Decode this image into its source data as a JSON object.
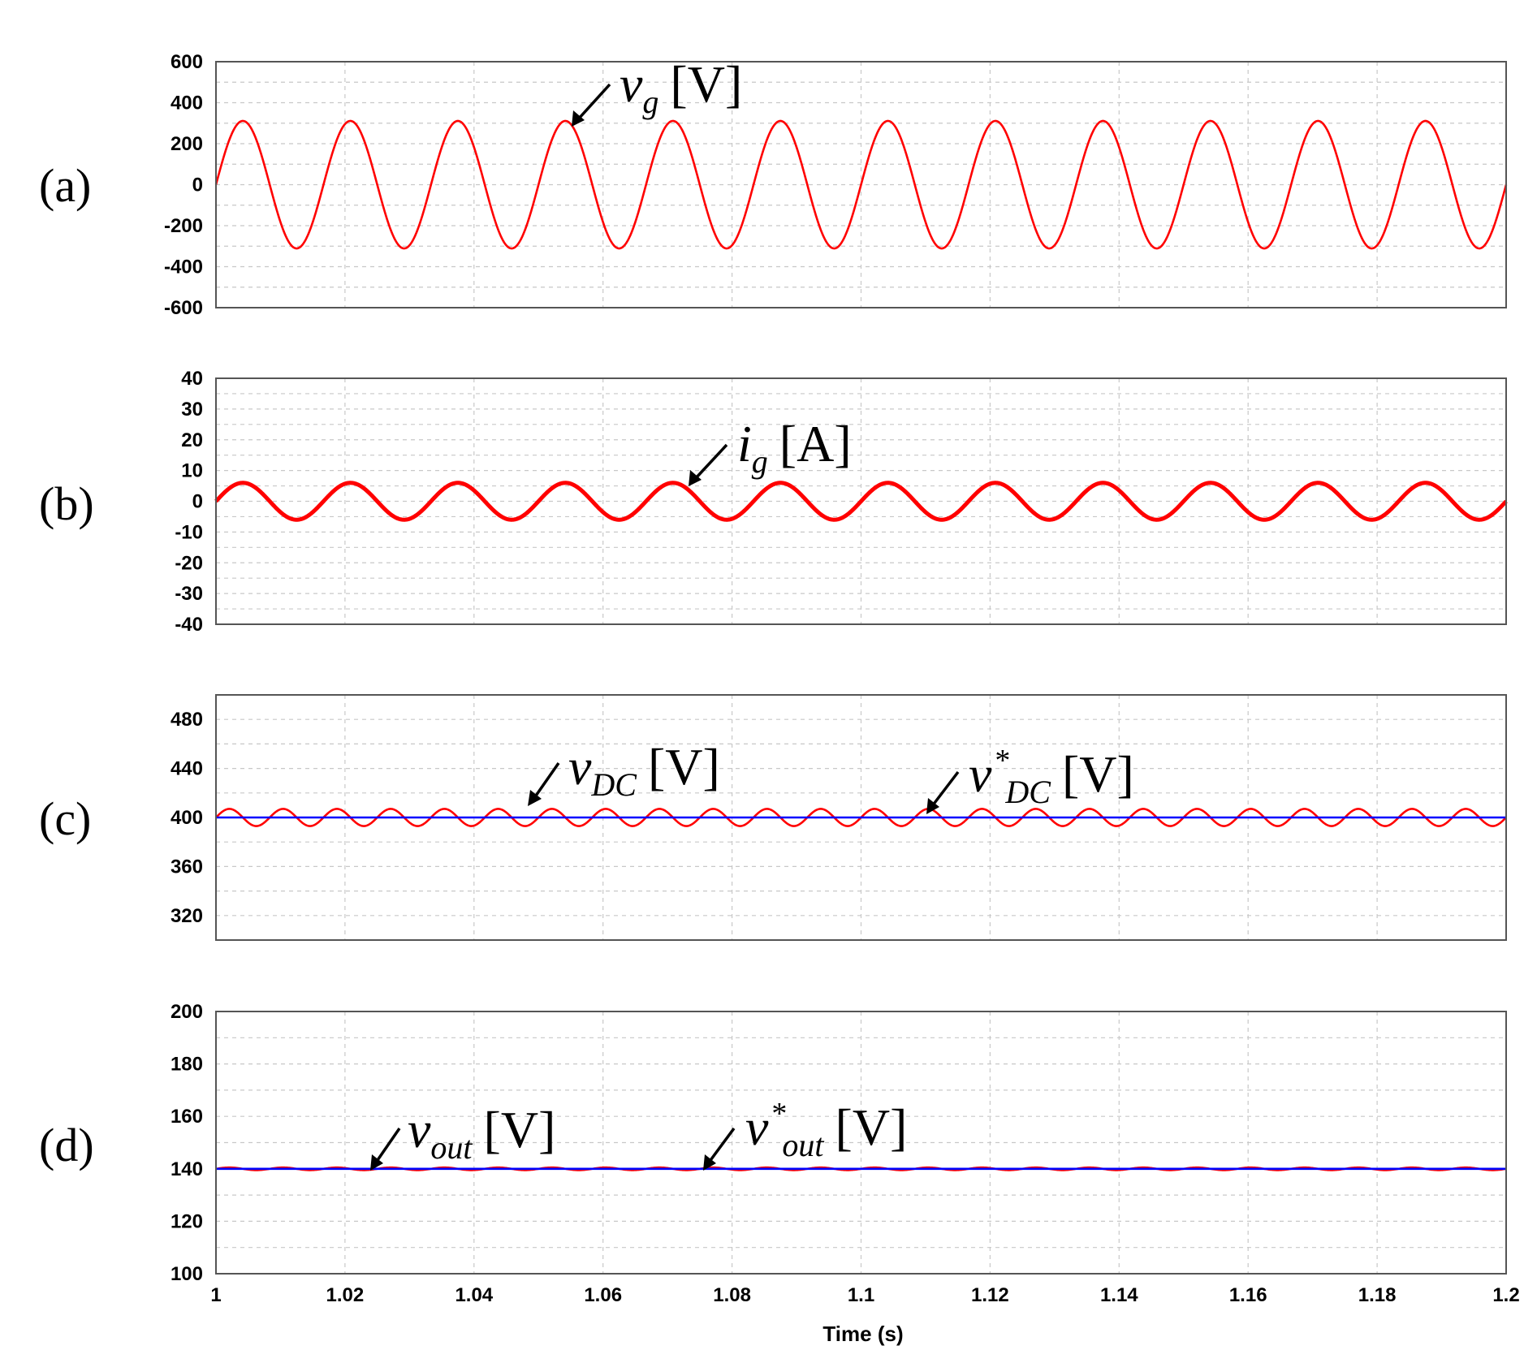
{
  "chart_data": [
    {
      "type": "line",
      "panel": "(a)",
      "xlim": [
        1,
        1.2
      ],
      "ylim": [
        -600,
        600
      ],
      "yticks": [
        600,
        400,
        200,
        0,
        -200,
        -400,
        -600
      ],
      "grid": true,
      "series": [
        {
          "name_parts": {
            "var": "v",
            "sub": "g",
            "sup": "",
            "unit": "[V]"
          },
          "color": "#ff0000",
          "waveform": "sine",
          "offset": 0,
          "amplitude": 311,
          "frequency_hz": 60,
          "phase_rad": 0
        }
      ]
    },
    {
      "type": "line",
      "panel": "(b)",
      "xlim": [
        1,
        1.2
      ],
      "ylim": [
        -40,
        40
      ],
      "yticks": [
        40,
        30,
        20,
        10,
        0,
        -10,
        -20,
        -30,
        -40
      ],
      "grid": true,
      "series": [
        {
          "name_parts": {
            "var": "i",
            "sub": "g",
            "sup": "",
            "unit": "[A]"
          },
          "color": "#ff0000",
          "waveform": "sine",
          "offset": 0,
          "amplitude": 6,
          "frequency_hz": 60,
          "phase_rad": 0
        }
      ]
    },
    {
      "type": "line",
      "panel": "(c)",
      "xlim": [
        1,
        1.2
      ],
      "ylim": [
        300,
        500
      ],
      "yticks": [
        480,
        440,
        400,
        360,
        320
      ],
      "grid": true,
      "series": [
        {
          "name_parts": {
            "var": "v",
            "sub": "DC",
            "sup": "",
            "unit": "[V]"
          },
          "color": "#ff0000",
          "waveform": "sine",
          "offset": 400,
          "amplitude": 7,
          "frequency_hz": 120,
          "phase_rad": 0
        },
        {
          "name_parts": {
            "var": "v",
            "sub": "DC",
            "sup": "*",
            "unit": "[V]"
          },
          "color": "#0000ff",
          "waveform": "constant",
          "offset": 400
        }
      ]
    },
    {
      "type": "line",
      "panel": "(d)",
      "xlim": [
        1,
        1.2
      ],
      "ylim": [
        100,
        200
      ],
      "yticks": [
        200,
        180,
        160,
        140,
        120,
        100
      ],
      "xticks": [
        "1",
        "1.02",
        "1.04",
        "1.06",
        "1.08",
        "1.1",
        "1.12",
        "1.14",
        "1.16",
        "1.18",
        "1.2"
      ],
      "xlabel": "Time (s)",
      "grid": true,
      "series": [
        {
          "name_parts": {
            "var": "v",
            "sub": "out",
            "sup": "",
            "unit": "[V]"
          },
          "color": "#ff0000",
          "waveform": "sine",
          "offset": 140,
          "amplitude": 0.5,
          "frequency_hz": 120,
          "phase_rad": 0
        },
        {
          "name_parts": {
            "var": "v",
            "sub": "out",
            "sup": "*",
            "unit": "[V]"
          },
          "color": "#0000ff",
          "waveform": "constant",
          "offset": 140
        }
      ]
    }
  ]
}
